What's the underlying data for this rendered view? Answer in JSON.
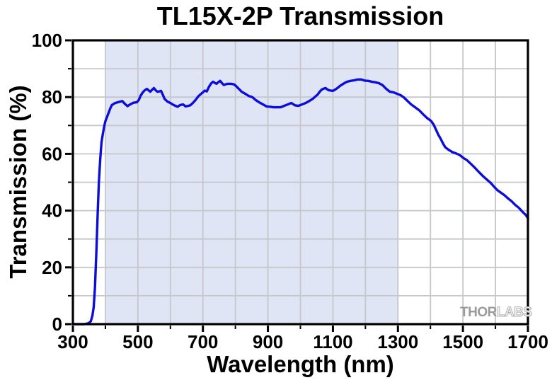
{
  "chart_data": {
    "type": "line",
    "title": "TL15X-2P Transmission",
    "xlabel": "Wavelength (nm)",
    "ylabel": "Transmission (%)",
    "xlim": [
      300,
      1700
    ],
    "ylim": [
      0,
      100
    ],
    "x_major_ticks": [
      300,
      500,
      700,
      900,
      1100,
      1300,
      1500,
      1700
    ],
    "x_minor_ticks": [
      400,
      600,
      800,
      1000,
      1200,
      1400,
      1600
    ],
    "y_major_ticks": [
      0,
      20,
      40,
      60,
      80,
      100
    ],
    "y_minor_ticks": [
      10,
      30,
      50,
      70,
      90
    ],
    "grid": {
      "x_step": 100,
      "y_step": 10,
      "color": "#c5c7cb",
      "on": true
    },
    "shaded_region": {
      "x_start": 400,
      "x_end": 1300,
      "color": "#dfe5f4"
    },
    "frame_color": "#000000",
    "legend": "none",
    "series": [
      {
        "name": "Transmission",
        "color": "#0d0dd9",
        "points": [
          [
            305,
            0
          ],
          [
            335,
            0
          ],
          [
            348,
            0.3
          ],
          [
            355,
            1
          ],
          [
            360,
            3
          ],
          [
            364,
            6
          ],
          [
            368,
            13
          ],
          [
            372,
            25
          ],
          [
            376,
            38
          ],
          [
            380,
            50
          ],
          [
            384,
            58
          ],
          [
            388,
            64
          ],
          [
            392,
            67
          ],
          [
            396,
            69.5
          ],
          [
            400,
            71.5
          ],
          [
            405,
            73
          ],
          [
            410,
            74.5
          ],
          [
            415,
            76
          ],
          [
            420,
            77.2
          ],
          [
            428,
            77.8
          ],
          [
            436,
            78.1
          ],
          [
            445,
            78.4
          ],
          [
            452,
            78.6
          ],
          [
            460,
            77.6
          ],
          [
            468,
            76.8
          ],
          [
            476,
            77.4
          ],
          [
            486,
            78
          ],
          [
            497,
            78.2
          ],
          [
            503,
            79
          ],
          [
            508,
            80.4
          ],
          [
            514,
            81.5
          ],
          [
            520,
            82.3
          ],
          [
            528,
            82.9
          ],
          [
            533,
            82.4
          ],
          [
            538,
            81.9
          ],
          [
            543,
            82.5
          ],
          [
            549,
            83.2
          ],
          [
            555,
            82.4
          ],
          [
            560,
            81.9
          ],
          [
            566,
            82
          ],
          [
            571,
            82.2
          ],
          [
            576,
            81
          ],
          [
            582,
            79.4
          ],
          [
            590,
            78.5
          ],
          [
            600,
            77.9
          ],
          [
            610,
            77.2
          ],
          [
            622,
            76.6
          ],
          [
            630,
            77.2
          ],
          [
            639,
            77.4
          ],
          [
            647,
            76.7
          ],
          [
            654,
            76.9
          ],
          [
            661,
            77.1
          ],
          [
            668,
            77.8
          ],
          [
            676,
            78.8
          ],
          [
            687,
            80.4
          ],
          [
            695,
            81.2
          ],
          [
            702,
            81.9
          ],
          [
            706,
            82.3
          ],
          [
            712,
            82.0
          ],
          [
            718,
            83.5
          ],
          [
            725,
            84.8
          ],
          [
            731,
            85.4
          ],
          [
            737,
            85.0
          ],
          [
            742,
            84.7
          ],
          [
            748,
            85.3
          ],
          [
            753,
            85.7
          ],
          [
            759,
            84.9
          ],
          [
            764,
            84.3
          ],
          [
            770,
            84.5
          ],
          [
            775,
            84.7
          ],
          [
            781,
            84.7
          ],
          [
            786,
            84.7
          ],
          [
            792,
            84.6
          ],
          [
            797,
            84.4
          ],
          [
            803,
            83.8
          ],
          [
            808,
            83.2
          ],
          [
            814,
            82.5
          ],
          [
            819,
            81.9
          ],
          [
            830,
            81.2
          ],
          [
            841,
            80.4
          ],
          [
            852,
            80
          ],
          [
            863,
            78.9
          ],
          [
            874,
            78.1
          ],
          [
            885,
            77.4
          ],
          [
            896,
            76.7
          ],
          [
            906,
            76.6
          ],
          [
            917,
            76.4
          ],
          [
            928,
            76.4
          ],
          [
            939,
            76.4
          ],
          [
            950,
            76.9
          ],
          [
            961,
            77.4
          ],
          [
            972,
            77.9
          ],
          [
            978,
            77.5
          ],
          [
            983,
            77.1
          ],
          [
            994,
            76.9
          ],
          [
            1005,
            77.4
          ],
          [
            1016,
            77.9
          ],
          [
            1027,
            78.6
          ],
          [
            1038,
            79.4
          ],
          [
            1046,
            80.2
          ],
          [
            1053,
            80.9
          ],
          [
            1060,
            82
          ],
          [
            1066,
            82.7
          ],
          [
            1072,
            83
          ],
          [
            1077,
            83.2
          ],
          [
            1083,
            82.7
          ],
          [
            1088,
            82.4
          ],
          [
            1094,
            82.3
          ],
          [
            1099,
            82.2
          ],
          [
            1105,
            82.5
          ],
          [
            1110,
            82.9
          ],
          [
            1116,
            83.4
          ],
          [
            1121,
            83.9
          ],
          [
            1132,
            84.7
          ],
          [
            1143,
            85.4
          ],
          [
            1154,
            85.7
          ],
          [
            1165,
            85.9
          ],
          [
            1176,
            86.2
          ],
          [
            1187,
            86.2
          ],
          [
            1198,
            85.8
          ],
          [
            1209,
            85.7
          ],
          [
            1220,
            85.4
          ],
          [
            1231,
            85.2
          ],
          [
            1242,
            84.9
          ],
          [
            1253,
            84.2
          ],
          [
            1264,
            82.9
          ],
          [
            1275,
            81.9
          ],
          [
            1286,
            81.7
          ],
          [
            1297,
            81.2
          ],
          [
            1308,
            80.7
          ],
          [
            1318,
            79.9
          ],
          [
            1328,
            78.8
          ],
          [
            1341,
            77.4
          ],
          [
            1353,
            76.4
          ],
          [
            1365,
            75.4
          ],
          [
            1378,
            73.9
          ],
          [
            1390,
            72.6
          ],
          [
            1402,
            71.6
          ],
          [
            1410,
            70.3
          ],
          [
            1418,
            68.3
          ],
          [
            1424,
            66.8
          ],
          [
            1430,
            65.6
          ],
          [
            1440,
            63.4
          ],
          [
            1446,
            62.3
          ],
          [
            1455,
            61.5
          ],
          [
            1468,
            60.6
          ],
          [
            1480,
            60.1
          ],
          [
            1490,
            59.6
          ],
          [
            1502,
            58.5
          ],
          [
            1512,
            57.8
          ],
          [
            1524,
            56.5
          ],
          [
            1535,
            55.3
          ],
          [
            1550,
            53.5
          ],
          [
            1563,
            52
          ],
          [
            1575,
            50.8
          ],
          [
            1585,
            49.8
          ],
          [
            1596,
            48.4
          ],
          [
            1606,
            47.2
          ],
          [
            1617,
            46.3
          ],
          [
            1628,
            45.4
          ],
          [
            1640,
            44.2
          ],
          [
            1650,
            43.3
          ],
          [
            1661,
            42
          ],
          [
            1672,
            41
          ],
          [
            1683,
            39.6
          ],
          [
            1694,
            38.4
          ],
          [
            1700,
            37.3
          ]
        ]
      }
    ],
    "watermark": {
      "part1": "THOR",
      "part2": "LABS",
      "solid_color": "#9b9b9b",
      "outline_color": "#b3b3b3"
    }
  }
}
